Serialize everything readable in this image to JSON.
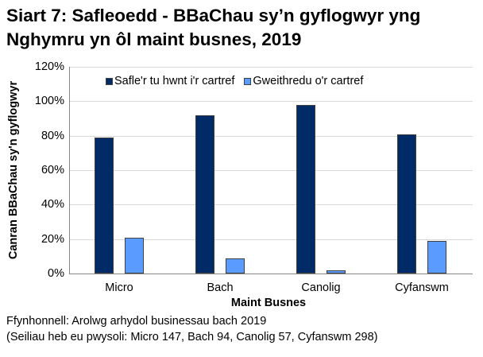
{
  "title": {
    "line1": "Siart 7: Safleoedd - BBaChau sy’n gyflogwyr yng",
    "line2": "Nghymru yn ôl maint busnes, 2019"
  },
  "colors": {
    "series0": "#002b66",
    "series1": "#5a9bff",
    "gridline": "#d9d9d9",
    "axis": "#868686"
  },
  "footnotes": {
    "source": "Ffynhonnell: Arolwg arhydol businessau bach 2019",
    "bases": "(Seiliau heb eu pwysoli: Micro 147, Bach 94, Canolig 57, Cyfanswm 298)"
  },
  "chart_data": {
    "type": "bar",
    "title": "Siart 7: Safleoedd - BBaChau sy’n gyflogwyr yng Nghymru yn ôl maint busnes, 2019",
    "xlabel": "Maint Busnes",
    "ylabel": "Canran BBaChau sy'n gyflogwyr",
    "categories": [
      "Micro",
      "Bach",
      "Canolig",
      "Cyfanswm"
    ],
    "series": [
      {
        "name": "Safle'r tu hwnt i'r cartref",
        "color": "#002b66",
        "values": [
          79,
          92,
          98,
          81
        ]
      },
      {
        "name": "Gweithredu o'r cartref",
        "color": "#5a9bff",
        "values": [
          21,
          9,
          2,
          19
        ]
      }
    ],
    "ylim": [
      0,
      120
    ],
    "yticks": [
      "0%",
      "20%",
      "40%",
      "60%",
      "80%",
      "100%",
      "120%"
    ],
    "grid": true,
    "legend_position": "top-inside"
  }
}
